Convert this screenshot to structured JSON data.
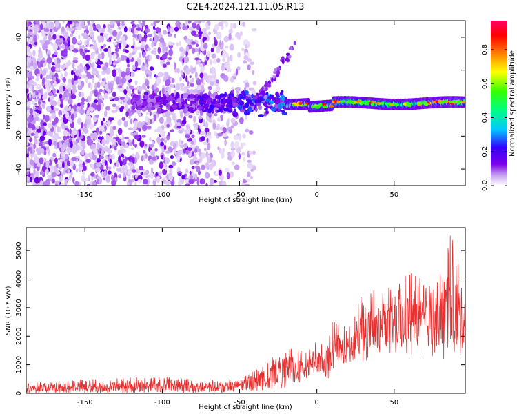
{
  "title": "C2E4.2024.121.11.05.R13",
  "chart_data": [
    {
      "type": "heatmap",
      "xlabel": "Height of straight line (km)",
      "ylabel": "Frequency (Hz)",
      "xlim": [
        -188,
        96
      ],
      "ylim": [
        -50,
        50
      ],
      "x_ticks": [
        -150,
        -100,
        -50,
        0,
        50
      ],
      "y_ticks": [
        -40,
        -20,
        0,
        20,
        40
      ],
      "colorbar": {
        "label": "Normalized spectral amplitude",
        "range": [
          0,
          0.97
        ],
        "ticks": [
          0.0,
          0.2,
          0.4,
          0.6,
          0.8
        ],
        "colormap": [
          "#ffffff",
          "#c9a7f0",
          "#7a00e6",
          "#3300ff",
          "#00c8ff",
          "#00ff80",
          "#33ff00",
          "#ffff00",
          "#ff8000",
          "#ff0000",
          "#ff0066"
        ]
      },
      "regions": [
        {
          "x_from": -188,
          "x_to": -40,
          "description": "noise",
          "amplitude": 0.15
        },
        {
          "x_from": -120,
          "x_to": -20,
          "center_hz": 0,
          "amplitude": 0.4
        },
        {
          "x_from": -20,
          "x_to": 96,
          "center_hz": 0,
          "amplitude": 0.75
        }
      ]
    },
    {
      "type": "line",
      "xlabel": "Height of straight line (km)",
      "ylabel": "SNR (10 * v/v)",
      "xlim": [
        -188,
        96
      ],
      "ylim": [
        0,
        5800
      ],
      "x_ticks": [
        -150,
        -100,
        -50,
        0,
        50
      ],
      "y_ticks": [
        0,
        1000,
        2000,
        3000,
        4000,
        5000
      ],
      "color": "#e83030",
      "envelope": {
        "x": [
          -188,
          -100,
          -60,
          -40,
          -30,
          -20,
          -10,
          -5,
          0,
          5,
          10,
          20,
          30,
          40,
          50,
          60,
          70,
          80,
          85,
          90,
          96
        ],
        "y_min": [
          0,
          0,
          0,
          50,
          100,
          200,
          300,
          600,
          700,
          500,
          500,
          900,
          1100,
          1200,
          1300,
          1300,
          1200,
          1100,
          900,
          1200,
          1300
        ],
        "y_max": [
          400,
          600,
          450,
          800,
          1200,
          1700,
          1500,
          1700,
          1800,
          1700,
          2600,
          2300,
          3600,
          3800,
          3700,
          4300,
          3900,
          4500,
          5800,
          5000,
          4200
        ]
      }
    }
  ]
}
